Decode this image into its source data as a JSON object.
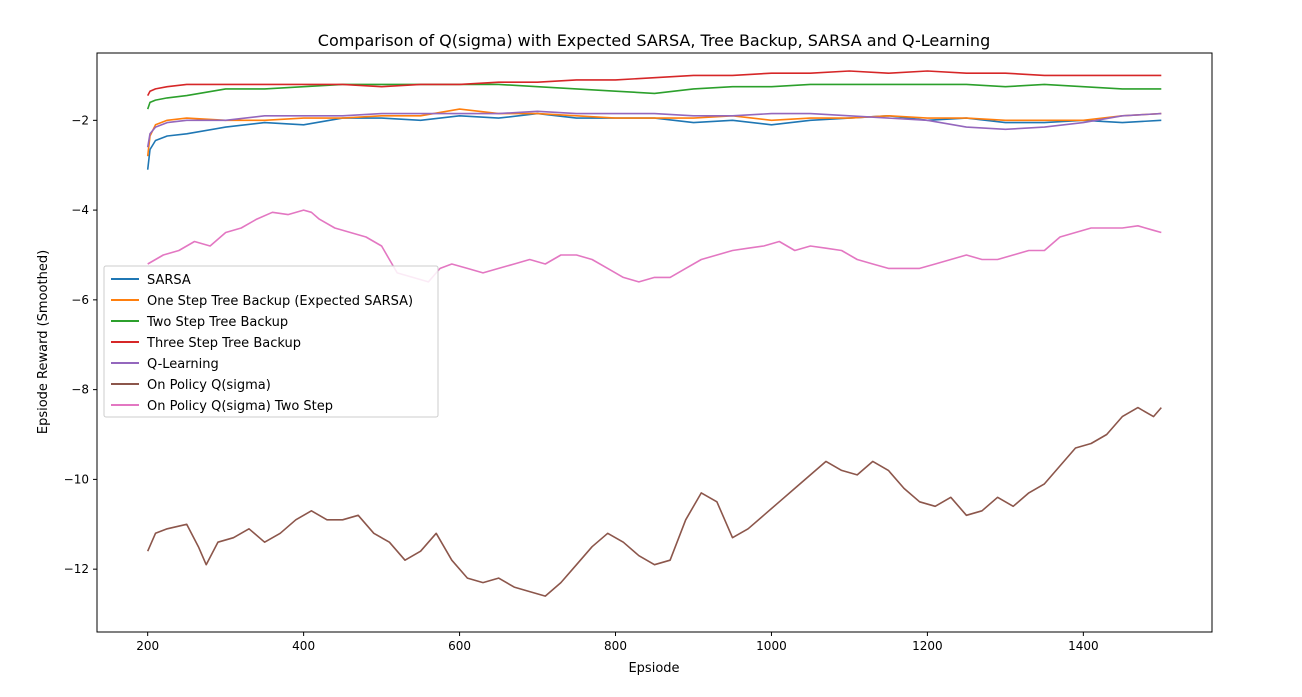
{
  "chart_data": {
    "type": "line",
    "title": "Comparison of Q(sigma) with Expected SARSA, Tree Backup, SARSA and Q-Learning",
    "xlabel": "Epsiode",
    "ylabel": "Epsiode Reward (Smoothed)",
    "xlim": [
      135,
      1565
    ],
    "ylim": [
      -13.4,
      -0.5
    ],
    "xticks": [
      200,
      400,
      600,
      800,
      1000,
      1200,
      1400
    ],
    "yticks": [
      -12,
      -10,
      -8,
      -6,
      -4,
      -2
    ],
    "xtick_labels": [
      "200",
      "400",
      "600",
      "800",
      "1000",
      "1200",
      "1400"
    ],
    "ytick_labels": [
      "−12",
      "−10",
      "−8",
      "−6",
      "−4",
      "−2"
    ],
    "legend_position": "center-left",
    "series": [
      {
        "name": "SARSA",
        "color": "#1f77b4",
        "x": [
          200,
          203,
          210,
          225,
          250,
          300,
          350,
          400,
          450,
          500,
          550,
          600,
          650,
          700,
          750,
          800,
          850,
          900,
          950,
          1000,
          1050,
          1100,
          1150,
          1200,
          1250,
          1300,
          1350,
          1400,
          1450,
          1500
        ],
        "values": [
          -3.1,
          -2.65,
          -2.45,
          -2.35,
          -2.3,
          -2.15,
          -2.05,
          -2.1,
          -1.95,
          -1.95,
          -2.0,
          -1.9,
          -1.95,
          -1.85,
          -1.95,
          -1.95,
          -1.95,
          -2.05,
          -2.0,
          -2.1,
          -2.0,
          -1.95,
          -1.9,
          -2.0,
          -1.95,
          -2.05,
          -2.05,
          -2.0,
          -2.05,
          -2.0
        ]
      },
      {
        "name": "One Step Tree Backup (Expected SARSA)",
        "color": "#ff7f0e",
        "x": [
          200,
          203,
          210,
          225,
          250,
          300,
          350,
          400,
          450,
          500,
          550,
          600,
          650,
          700,
          750,
          800,
          850,
          900,
          950,
          1000,
          1050,
          1100,
          1150,
          1200,
          1250,
          1300,
          1350,
          1400,
          1450,
          1500
        ],
        "values": [
          -2.8,
          -2.35,
          -2.1,
          -2.0,
          -1.95,
          -2.0,
          -2.0,
          -1.95,
          -1.95,
          -1.9,
          -1.9,
          -1.75,
          -1.85,
          -1.85,
          -1.9,
          -1.95,
          -1.95,
          -1.95,
          -1.9,
          -2.0,
          -1.95,
          -1.95,
          -1.9,
          -1.95,
          -1.95,
          -2.0,
          -2.0,
          -2.0,
          -1.9,
          -1.85
        ]
      },
      {
        "name": "Two Step Tree Backup",
        "color": "#2ca02c",
        "x": [
          200,
          203,
          210,
          225,
          250,
          300,
          350,
          400,
          450,
          500,
          550,
          600,
          650,
          700,
          750,
          800,
          850,
          900,
          950,
          1000,
          1050,
          1100,
          1150,
          1200,
          1250,
          1300,
          1350,
          1400,
          1450,
          1500
        ],
        "values": [
          -1.75,
          -1.6,
          -1.55,
          -1.5,
          -1.45,
          -1.3,
          -1.3,
          -1.25,
          -1.2,
          -1.2,
          -1.2,
          -1.2,
          -1.2,
          -1.25,
          -1.3,
          -1.35,
          -1.4,
          -1.3,
          -1.25,
          -1.25,
          -1.2,
          -1.2,
          -1.2,
          -1.2,
          -1.2,
          -1.25,
          -1.2,
          -1.25,
          -1.3,
          -1.3
        ]
      },
      {
        "name": "Three Step Tree Backup",
        "color": "#d62728",
        "x": [
          200,
          203,
          210,
          225,
          250,
          300,
          350,
          400,
          450,
          500,
          550,
          600,
          650,
          700,
          750,
          800,
          850,
          900,
          950,
          1000,
          1050,
          1100,
          1150,
          1200,
          1250,
          1300,
          1350,
          1400,
          1450,
          1500
        ],
        "values": [
          -1.45,
          -1.35,
          -1.3,
          -1.25,
          -1.2,
          -1.2,
          -1.2,
          -1.2,
          -1.2,
          -1.25,
          -1.2,
          -1.2,
          -1.15,
          -1.15,
          -1.1,
          -1.1,
          -1.05,
          -1.0,
          -1.0,
          -0.95,
          -0.95,
          -0.9,
          -0.95,
          -0.9,
          -0.95,
          -0.95,
          -1.0,
          -1.0,
          -1.0,
          -1.0
        ]
      },
      {
        "name": "Q-Learning",
        "color": "#9467bd",
        "x": [
          200,
          203,
          210,
          225,
          250,
          300,
          350,
          400,
          450,
          500,
          550,
          600,
          650,
          700,
          750,
          800,
          850,
          900,
          950,
          1000,
          1050,
          1100,
          1150,
          1200,
          1250,
          1300,
          1350,
          1400,
          1450,
          1500
        ],
        "values": [
          -2.6,
          -2.3,
          -2.15,
          -2.05,
          -2.0,
          -2.0,
          -1.9,
          -1.9,
          -1.9,
          -1.85,
          -1.85,
          -1.85,
          -1.85,
          -1.8,
          -1.85,
          -1.85,
          -1.85,
          -1.9,
          -1.9,
          -1.85,
          -1.85,
          -1.9,
          -1.95,
          -2.0,
          -2.15,
          -2.2,
          -2.15,
          -2.05,
          -1.9,
          -1.85
        ]
      },
      {
        "name": "On Policy Q(sigma)",
        "color": "#8c564b",
        "x": [
          200,
          210,
          225,
          250,
          265,
          275,
          290,
          310,
          330,
          350,
          370,
          390,
          410,
          430,
          450,
          470,
          490,
          510,
          530,
          550,
          570,
          590,
          610,
          630,
          650,
          670,
          690,
          710,
          730,
          750,
          770,
          790,
          810,
          830,
          850,
          870,
          890,
          910,
          930,
          950,
          970,
          990,
          1010,
          1030,
          1050,
          1070,
          1090,
          1110,
          1130,
          1150,
          1170,
          1190,
          1210,
          1230,
          1250,
          1270,
          1290,
          1310,
          1330,
          1350,
          1370,
          1390,
          1410,
          1430,
          1450,
          1470,
          1490,
          1500
        ],
        "values": [
          -11.6,
          -11.2,
          -11.1,
          -11.0,
          -11.5,
          -11.9,
          -11.4,
          -11.3,
          -11.1,
          -11.4,
          -11.2,
          -10.9,
          -10.7,
          -10.9,
          -10.9,
          -10.8,
          -11.2,
          -11.4,
          -11.8,
          -11.6,
          -11.2,
          -11.8,
          -12.2,
          -12.3,
          -12.2,
          -12.4,
          -12.5,
          -12.6,
          -12.3,
          -11.9,
          -11.5,
          -11.2,
          -11.4,
          -11.7,
          -11.9,
          -11.8,
          -10.9,
          -10.3,
          -10.5,
          -11.3,
          -11.1,
          -10.8,
          -10.5,
          -10.2,
          -9.9,
          -9.6,
          -9.8,
          -9.9,
          -9.6,
          -9.8,
          -10.2,
          -10.5,
          -10.6,
          -10.4,
          -10.8,
          -10.7,
          -10.4,
          -10.6,
          -10.3,
          -10.1,
          -9.7,
          -9.3,
          -9.2,
          -9.0,
          -8.6,
          -8.4,
          -8.6,
          -8.4
        ]
      },
      {
        "name": "On Policy Q(sigma) Two Step",
        "color": "#e377c2",
        "x": [
          200,
          220,
          240,
          260,
          280,
          300,
          320,
          340,
          360,
          380,
          400,
          410,
          420,
          440,
          460,
          480,
          500,
          510,
          520,
          540,
          560,
          575,
          590,
          610,
          630,
          650,
          670,
          690,
          710,
          730,
          750,
          770,
          790,
          810,
          830,
          850,
          870,
          890,
          910,
          930,
          950,
          970,
          990,
          1010,
          1030,
          1050,
          1070,
          1090,
          1110,
          1130,
          1150,
          1170,
          1190,
          1210,
          1230,
          1250,
          1270,
          1290,
          1310,
          1330,
          1350,
          1370,
          1390,
          1410,
          1430,
          1450,
          1470,
          1490,
          1500
        ],
        "values": [
          -5.2,
          -5.0,
          -4.9,
          -4.7,
          -4.8,
          -4.5,
          -4.4,
          -4.2,
          -4.05,
          -4.1,
          -4.0,
          -4.05,
          -4.2,
          -4.4,
          -4.5,
          -4.6,
          -4.8,
          -5.1,
          -5.4,
          -5.5,
          -5.6,
          -5.3,
          -5.2,
          -5.3,
          -5.4,
          -5.3,
          -5.2,
          -5.1,
          -5.2,
          -5.0,
          -5.0,
          -5.1,
          -5.3,
          -5.5,
          -5.6,
          -5.5,
          -5.5,
          -5.3,
          -5.1,
          -5.0,
          -4.9,
          -4.85,
          -4.8,
          -4.7,
          -4.9,
          -4.8,
          -4.85,
          -4.9,
          -5.1,
          -5.2,
          -5.3,
          -5.3,
          -5.3,
          -5.2,
          -5.1,
          -5.0,
          -5.1,
          -5.1,
          -5.0,
          -4.9,
          -4.9,
          -4.6,
          -4.5,
          -4.4,
          -4.4,
          -4.4,
          -4.35,
          -4.45,
          -4.5
        ]
      }
    ]
  }
}
